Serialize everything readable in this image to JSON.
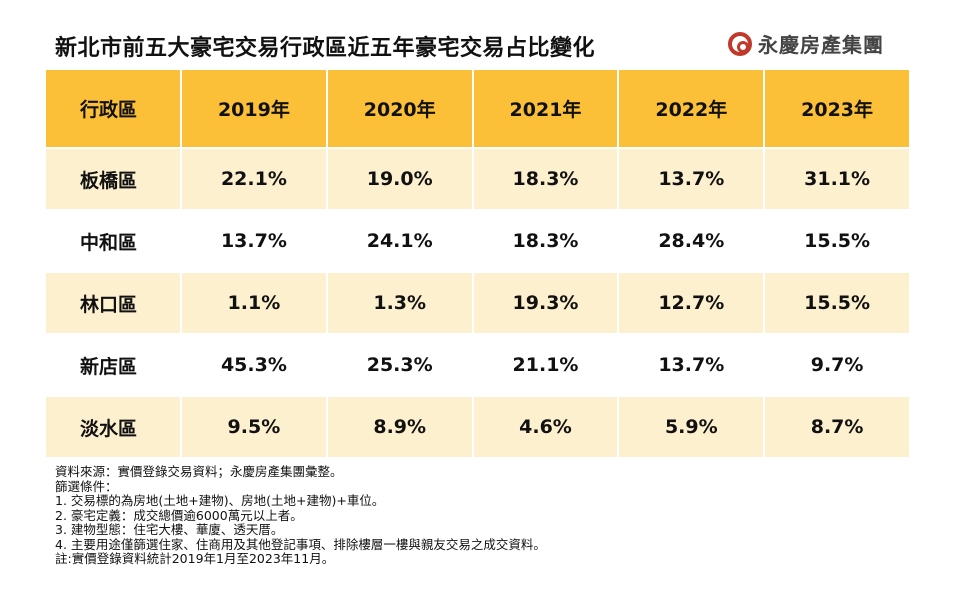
{
  "title": "新北市前五大豪宅交易行政區近五年豪宅交易占比變化",
  "logo": {
    "text": "永慶房產集團",
    "accent": "#c0392b"
  },
  "table": {
    "headers": [
      "行政區",
      "2019年",
      "2020年",
      "2021年",
      "2022年",
      "2023年"
    ],
    "rows": [
      [
        "板橋區",
        "22.1%",
        "19.0%",
        "18.3%",
        "13.7%",
        "31.1%"
      ],
      [
        "中和區",
        "13.7%",
        "24.1%",
        "18.3%",
        "28.4%",
        "15.5%"
      ],
      [
        "林口區",
        "1.1%",
        "1.3%",
        "19.3%",
        "12.7%",
        "15.5%"
      ],
      [
        "新店區",
        "45.3%",
        "25.3%",
        "21.1%",
        "13.7%",
        "9.7%"
      ],
      [
        "淡水區",
        "9.5%",
        "8.9%",
        "4.6%",
        "5.9%",
        "8.7%"
      ]
    ]
  },
  "notes": [
    "資料來源：實價登錄交易資料；永慶房產集團彙整。",
    "篩選條件：",
    "1. 交易標的為房地(土地+建物)、房地(土地+建物)+車位。",
    "2. 豪宅定義：成交總價逾6000萬元以上者。",
    "3. 建物型態：住宅大樓、華廈、透天厝。",
    "4. 主要用途僅篩選住家、住商用及其他登記事項、排除樓層一樓與親友交易之成交資料。",
    "註:實價登錄資料統計2019年1月至2023年11月。"
  ],
  "colors": {
    "header": "#fbbf38",
    "row_alt": "#fdf0cf"
  }
}
